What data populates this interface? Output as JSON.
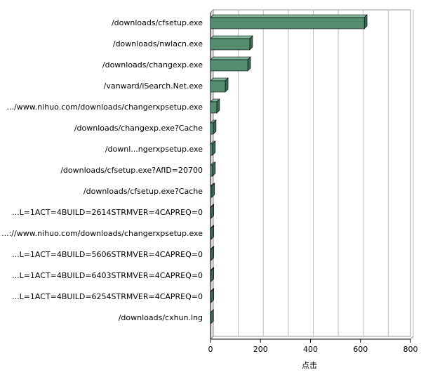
{
  "chart_data": {
    "type": "bar",
    "orientation": "horizontal",
    "3d": true,
    "x_label": "点击",
    "categories": [
      "/downloads/cfsetup.exe",
      "/downloads/nwlacn.exe",
      "/downloads/changexp.exe",
      "/vanward/iSearch.Net.exe",
      ".../www.nihuo.com/downloads/changerxpsetup.exe",
      "/downloads/changexp.exe?Cache",
      "/downl...ngerxpsetup.exe",
      "/downloads/cfsetup.exe?AfID=20700",
      "/downloads/cfsetup.exe?Cache",
      "...L=1ACT=4BUILD=2614STRMVER=4CAPREQ=0",
      "...://www.nihuo.com/downloads/changerxpsetup.exe",
      "...L=1ACT=4BUILD=5606STRMVER=4CAPREQ=0",
      "...L=1ACT=4BUILD=6403STRMVER=4CAPREQ=0",
      "...L=1ACT=4BUILD=6254STRMVER=4CAPREQ=0",
      "/downloads/cxhun.lng"
    ],
    "values": [
      615,
      157,
      149,
      59,
      25,
      11,
      8,
      8,
      5,
      2,
      2,
      2,
      2,
      2,
      1
    ],
    "color": "#548c70",
    "xlim": [
      0,
      800
    ],
    "xticks": [
      0,
      200,
      400,
      600,
      800
    ],
    "grid": true
  }
}
